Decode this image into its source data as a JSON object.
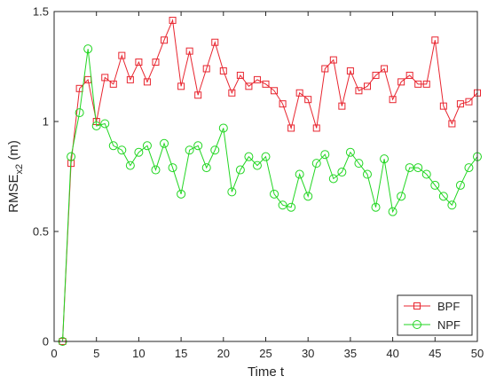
{
  "chart_data": {
    "type": "line",
    "xlabel": "Time t",
    "ylabel_main": "RMSE",
    "ylabel_sub": "x2",
    "ylabel_unit": " (m)",
    "xlim": [
      0,
      50
    ],
    "ylim": [
      0,
      1.5
    ],
    "x_ticks": [
      0,
      5,
      10,
      15,
      20,
      25,
      30,
      35,
      40,
      45,
      50
    ],
    "y_ticks": [
      0,
      0.5,
      1,
      1.5
    ],
    "y_tick_labels": [
      "0",
      "0.5",
      "1",
      "1.5"
    ],
    "grid": false,
    "legend_position": "bottom-right",
    "x": [
      1,
      2,
      3,
      4,
      5,
      6,
      7,
      8,
      9,
      10,
      11,
      12,
      13,
      14,
      15,
      16,
      17,
      18,
      19,
      20,
      21,
      22,
      23,
      24,
      25,
      26,
      27,
      28,
      29,
      30,
      31,
      32,
      33,
      34,
      35,
      36,
      37,
      38,
      39,
      40,
      41,
      42,
      43,
      44,
      45,
      46,
      47,
      48,
      49,
      50
    ],
    "series": [
      {
        "name": "BPF",
        "color": "#e8252f",
        "marker": "square",
        "values": [
          0.0,
          0.81,
          1.15,
          1.19,
          1.0,
          1.2,
          1.17,
          1.3,
          1.19,
          1.27,
          1.18,
          1.27,
          1.37,
          1.46,
          1.16,
          1.32,
          1.12,
          1.24,
          1.36,
          1.23,
          1.13,
          1.21,
          1.16,
          1.19,
          1.17,
          1.14,
          1.08,
          0.97,
          1.13,
          1.1,
          0.97,
          1.24,
          1.28,
          1.07,
          1.23,
          1.14,
          1.16,
          1.21,
          1.24,
          1.1,
          1.18,
          1.21,
          1.17,
          1.17,
          1.37,
          1.07,
          0.99,
          1.08,
          1.09,
          1.13
        ]
      },
      {
        "name": "NPF",
        "color": "#22d622",
        "marker": "circle",
        "values": [
          0.0,
          0.84,
          1.04,
          1.33,
          0.98,
          0.99,
          0.89,
          0.87,
          0.8,
          0.86,
          0.89,
          0.78,
          0.9,
          0.79,
          0.67,
          0.87,
          0.89,
          0.79,
          0.87,
          0.97,
          0.68,
          0.78,
          0.84,
          0.8,
          0.84,
          0.67,
          0.62,
          0.61,
          0.76,
          0.66,
          0.81,
          0.85,
          0.74,
          0.77,
          0.86,
          0.81,
          0.76,
          0.61,
          0.83,
          0.59,
          0.66,
          0.79,
          0.79,
          0.76,
          0.71,
          0.66,
          0.62,
          0.71,
          0.79,
          0.84
        ]
      }
    ]
  }
}
